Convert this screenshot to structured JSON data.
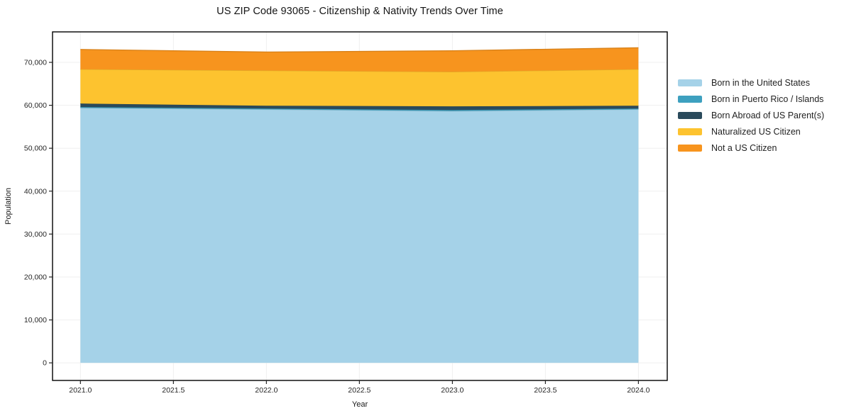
{
  "title": "US ZIP Code 93065 - Citizenship & Nativity Trends Over Time",
  "chart_data": {
    "type": "area",
    "stacked": true,
    "title": "US ZIP Code 93065 - Citizenship & Nativity Trends Over Time",
    "xlabel": "Year",
    "ylabel": "Population",
    "grid": true,
    "legend_position": "right",
    "x": [
      2021,
      2022,
      2023,
      2024
    ],
    "series": [
      {
        "name": "Born in the United States",
        "color": "#a5d2e8",
        "values": [
          59400,
          59050,
          58650,
          59050
        ]
      },
      {
        "name": "Born in Puerto Rico / Islands",
        "color": "#3da0bf",
        "values": [
          200,
          200,
          250,
          200
        ]
      },
      {
        "name": "Born Abroad of US Parent(s)",
        "color": "#2a4a5c",
        "values": [
          800,
          650,
          850,
          650
        ]
      },
      {
        "name": "Naturalized US Citizen",
        "color": "#fdc32f",
        "values": [
          8000,
          8200,
          8050,
          8500
        ]
      },
      {
        "name": "Not a US Citizen",
        "color": "#f7941e",
        "values": [
          4600,
          4300,
          4900,
          5000
        ]
      }
    ],
    "cumulative_totals": [
      73000,
      72400,
      72700,
      73400
    ],
    "xlim": [
      2020.85,
      2024.155
    ],
    "ylim": [
      -4100,
      77100
    ],
    "x_ticks": {
      "values": [
        2021.0,
        2021.5,
        2022.0,
        2022.5,
        2023.0,
        2023.5,
        2024.0
      ],
      "labels": [
        "2021.0",
        "2021.5",
        "2022.0",
        "2022.5",
        "2023.0",
        "2023.5",
        "2024.0"
      ]
    },
    "y_ticks": {
      "values": [
        0,
        10000,
        20000,
        30000,
        40000,
        50000,
        60000,
        70000
      ],
      "labels": [
        "0",
        "10,000",
        "20,000",
        "30,000",
        "40,000",
        "50,000",
        "60,000",
        "70,000"
      ]
    },
    "grid_color": "#efefef",
    "frame_color": "#000000",
    "tick_label_color": "#262626"
  }
}
